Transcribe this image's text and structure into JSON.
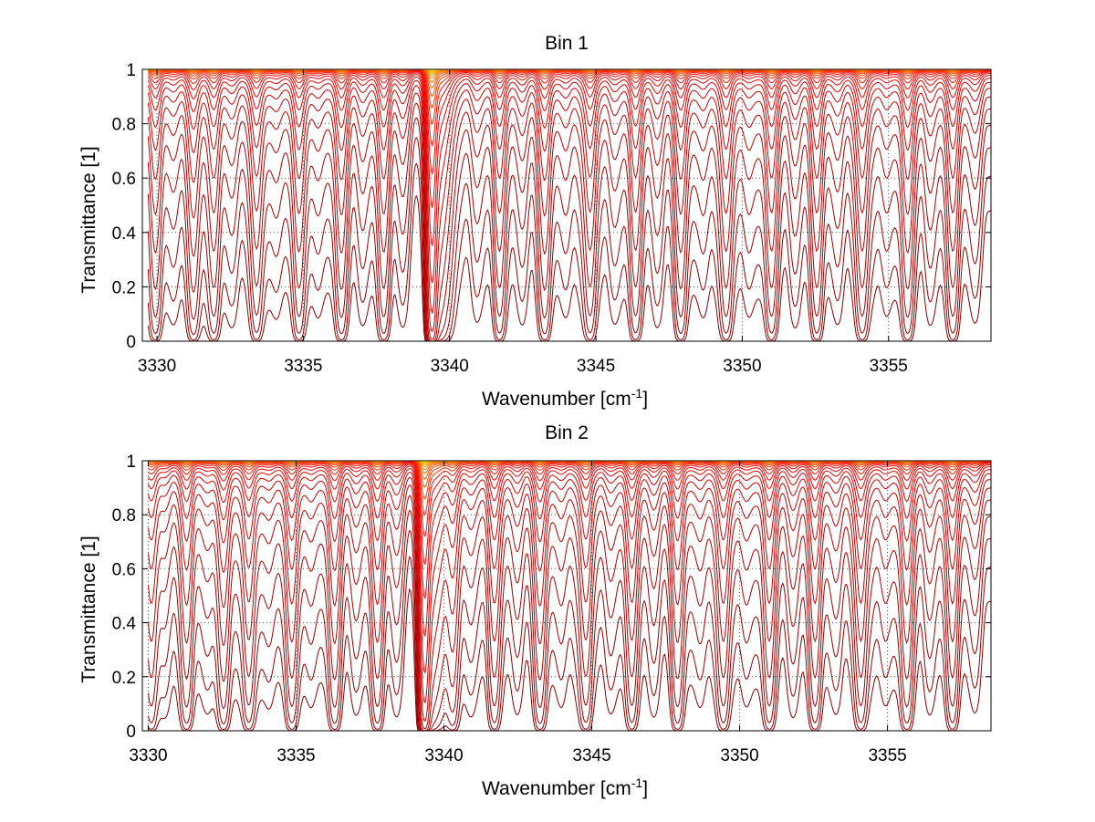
{
  "figure": {
    "background": "#ffffff",
    "axes_color": "#000000",
    "grid_color": "#555555"
  },
  "chart_data": [
    {
      "type": "line",
      "title": "Bin 1",
      "xlabel": "Wavenumber [cm",
      "xlabel_sup": "-1",
      "xlabel_close": "]",
      "ylabel": "Transmittance [1]",
      "xlim": [
        3329.5,
        3358.5
      ],
      "ylim": [
        0,
        1
      ],
      "xticks": [
        3330,
        3335,
        3340,
        3345,
        3350,
        3355
      ],
      "yticks": [
        0,
        0.2,
        0.4,
        0.6,
        0.8,
        1
      ],
      "grid": true,
      "legend": "none",
      "curve_count": 25,
      "curve_colors": [
        "#8b0000",
        "#ff0000",
        "#ffd700"
      ],
      "spectrum": {
        "strong_line": 3339.4,
        "manifold_lines": [
          3329.95,
          3331.25,
          3331.95,
          3333.4,
          3334.85,
          3336.3,
          3337.75,
          3341.7,
          3343.25,
          3344.8,
          3346.35,
          3347.9,
          3349.45,
          3351.0,
          3352.55,
          3354.1,
          3355.65,
          3357.2
        ],
        "weak_lines": [
          3330.6,
          3332.6,
          3334.1,
          3335.5,
          3337.0,
          3338.4,
          3340.9,
          3342.5,
          3344.0,
          3345.6,
          3347.1,
          3348.7,
          3350.2,
          3351.8,
          3353.3,
          3354.9,
          3356.4,
          3358.0
        ]
      }
    },
    {
      "type": "line",
      "title": "Bin 2",
      "xlabel": "Wavenumber [cm",
      "xlabel_sup": "-1",
      "xlabel_close": "]",
      "ylabel": "Transmittance [1]",
      "xlim": [
        3329.8,
        3358.5
      ],
      "ylim": [
        0,
        1
      ],
      "xticks": [
        3330,
        3335,
        3340,
        3345,
        3350,
        3355
      ],
      "yticks": [
        0,
        0.2,
        0.4,
        0.6,
        0.8,
        1
      ],
      "grid": true,
      "legend": "none",
      "curve_count": 25,
      "curve_colors": [
        "#8b0000",
        "#ff0000",
        "#ffd700"
      ],
      "spectrum": {
        "strong_line": 3339.35,
        "manifold_lines": [
          3330.1,
          3331.3,
          3332.55,
          3333.4,
          3334.85,
          3336.3,
          3337.75,
          3340.3,
          3341.7,
          3343.25,
          3344.8,
          3346.35,
          3347.9,
          3349.45,
          3351.0,
          3352.55,
          3354.1,
          3355.65,
          3357.2
        ],
        "weak_lines": [
          3330.6,
          3332.0,
          3334.1,
          3335.5,
          3337.0,
          3338.4,
          3340.9,
          3342.5,
          3344.0,
          3345.6,
          3347.1,
          3348.7,
          3350.2,
          3351.8,
          3353.3,
          3354.9,
          3356.4,
          3358.0
        ]
      }
    }
  ]
}
